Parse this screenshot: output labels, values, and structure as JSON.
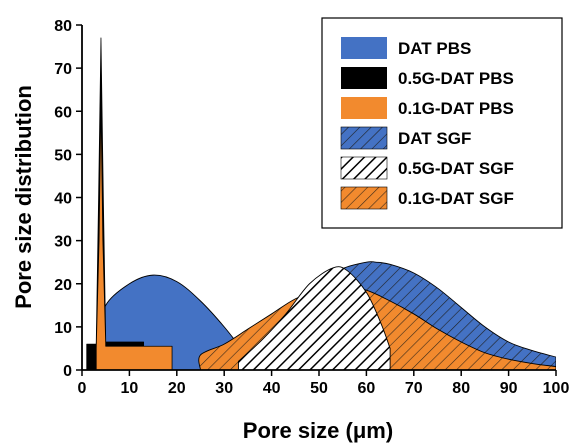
{
  "chart_data": {
    "type": "area",
    "xlabel": "Pore size (μm)",
    "ylabel": "Pore size distribution",
    "xlim": [
      0,
      100
    ],
    "ylim": [
      0,
      80
    ],
    "xticks": [
      "0",
      "10",
      "20",
      "30",
      "40",
      "50",
      "60",
      "70",
      "80",
      "90",
      "100"
    ],
    "yticks": [
      "0",
      "10",
      "20",
      "30",
      "40",
      "50",
      "60",
      "70",
      "80"
    ],
    "grid": false,
    "legend_position": "top-right",
    "series": [
      {
        "name": "DAT PBS",
        "fill": "#4472C4",
        "hatch": false,
        "x": [
          3,
          4,
          5,
          10,
          15,
          20,
          25,
          30,
          35
        ],
        "y": [
          0,
          8,
          15,
          20,
          22,
          20.5,
          16,
          10,
          3
        ]
      },
      {
        "name": "0.5G-DAT PBS",
        "fill": "#000000",
        "hatch": false,
        "x": [
          1,
          1,
          3,
          3.5,
          4,
          4.5,
          5,
          5,
          13,
          13
        ],
        "y": [
          0,
          6,
          6,
          40,
          77,
          40,
          7,
          6.5,
          6.5,
          0
        ]
      },
      {
        "name": "0.1G-DAT PBS",
        "fill": "#F28A2E",
        "hatch": false,
        "x": [
          3,
          3,
          3.6,
          4,
          4.4,
          5,
          5,
          19,
          19
        ],
        "y": [
          0,
          5,
          30,
          62,
          30,
          6,
          5.5,
          5.5,
          0
        ]
      },
      {
        "name": "DAT SGF",
        "fill": "#4472C4",
        "hatch": true,
        "x": [
          30,
          35,
          40,
          45,
          50,
          55,
          60,
          62,
          65,
          70,
          75,
          80,
          85,
          90,
          95,
          100
        ],
        "y": [
          5,
          8,
          12,
          16,
          20,
          23.5,
          25,
          25,
          24.5,
          22.5,
          19,
          14.5,
          10,
          6.5,
          4.5,
          3
        ]
      },
      {
        "name": "0.5G-DAT SGF",
        "fill": "#000000",
        "hatch": true,
        "x": [
          33,
          38,
          43,
          48,
          53,
          56,
          60,
          63,
          65
        ],
        "y": [
          2,
          7,
          13,
          20,
          23.7,
          23,
          18,
          11,
          5
        ]
      },
      {
        "name": "0.1G-DAT SGF",
        "fill": "#F28A2E",
        "hatch": true,
        "x": [
          25,
          25,
          30,
          35,
          40,
          45,
          50,
          55,
          60,
          65,
          70,
          75,
          80,
          85,
          90,
          95,
          100
        ],
        "y": [
          0,
          3.5,
          6,
          9.5,
          13,
          16.5,
          18.5,
          19.5,
          18.5,
          16,
          13,
          9.5,
          6.5,
          4,
          2.5,
          1.5,
          0.8
        ]
      }
    ]
  }
}
